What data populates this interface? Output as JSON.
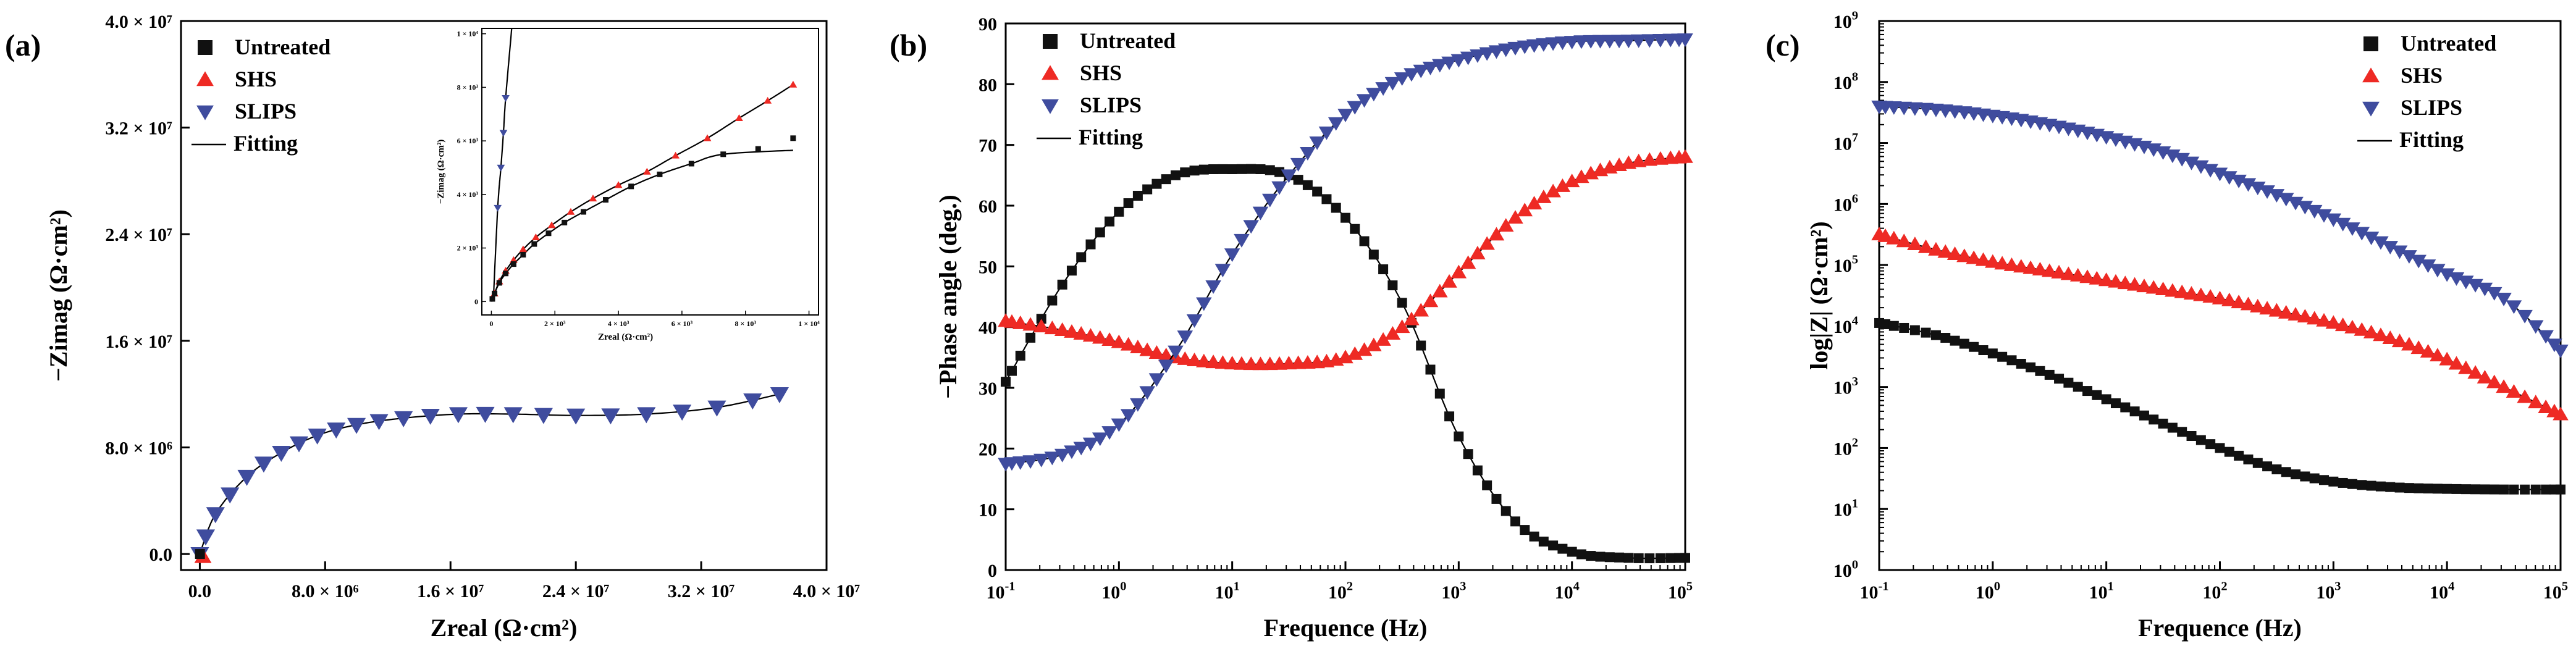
{
  "colors": {
    "untreated": "#111111",
    "shs": "#ee2a24",
    "slips": "#3f4c9e",
    "fit": "#000000",
    "axis": "#000000"
  },
  "legend": {
    "untreated": "Untreated",
    "shs": "SHS",
    "slips": "SLIPS",
    "fitting": "Fitting"
  },
  "chart_data": [
    {
      "type": "scatter",
      "panel": "(a)",
      "title": "",
      "xlabel": "Zreal (Ω·cm²)",
      "ylabel": "−Zimag (Ω·cm²)",
      "xlim": [
        -1200000,
        40000000
      ],
      "ylim": [
        -1200000,
        40000000
      ],
      "x_ticks": [
        0,
        8000000,
        16000000,
        24000000,
        32000000,
        40000000
      ],
      "x_tick_labels": [
        "0.0",
        "8.0 × 10⁶",
        "1.6 × 10⁷",
        "2.4 × 10⁷",
        "3.2 × 10⁷",
        "4.0 × 10⁷"
      ],
      "y_ticks": [
        0,
        8000000,
        16000000,
        24000000,
        32000000,
        40000000
      ],
      "y_tick_labels": [
        "0.0",
        "8.0 × 10⁶",
        "1.6 × 10⁷",
        "2.4 × 10⁷",
        "3.2 × 10⁷",
        "4.0 × 10⁷"
      ],
      "series": [
        {
          "name": "SLIPS",
          "x": [
            1000000,
            3000000,
            5200000,
            7500000,
            10000000,
            13000000,
            16500000,
            20000000,
            24000000,
            28500000,
            33000000,
            37000000
          ],
          "y": [
            3000000,
            5800000,
            7600000,
            8900000,
            9700000,
            10200000,
            10500000,
            10500000,
            10400000,
            10500000,
            11000000,
            12000000
          ]
        },
        {
          "name": "SHS",
          "x": [
            200000
          ],
          "y": [
            -200000
          ]
        },
        {
          "name": "Untreated",
          "x": [
            10000
          ],
          "y": [
            5000
          ]
        }
      ],
      "inset": {
        "xlabel": "Zreal (Ω·cm²)",
        "ylabel": "−Zimag (Ω·cm²)",
        "xlim": [
          -300,
          10300
        ],
        "ylim": [
          -500,
          10200
        ],
        "x_ticks": [
          0,
          2000,
          4000,
          6000,
          8000,
          10000
        ],
        "x_tick_labels": [
          "0",
          "2 × 10³",
          "4 × 10³",
          "6 × 10³",
          "8 × 10³",
          "1 × 10⁴"
        ],
        "y_ticks": [
          0,
          2000,
          4000,
          6000,
          8000,
          10000
        ],
        "y_tick_labels": [
          "0",
          "2 × 10³",
          "4 × 10³",
          "6 × 10³",
          "8 × 10³",
          "1 × 10⁴"
        ],
        "series": [
          {
            "name": "Untreated",
            "x": [
              30,
              100,
              250,
              450,
              700,
              1000,
              1350,
              1800,
              2300,
              2900,
              3600,
              4400,
              5300,
              6300,
              7300,
              8400,
              9500
            ],
            "y": [
              100,
              300,
              700,
              1050,
              1400,
              1750,
              2150,
              2550,
              2950,
              3350,
              3800,
              4300,
              4750,
              5150,
              5500,
              5700,
              6100
            ]
          },
          {
            "name": "SHS",
            "x": [
              100,
              250,
              450,
              700,
              1000,
              1400,
              1900,
              2500,
              3200,
              4000,
              4900,
              5800,
              6800,
              7800,
              8700,
              9500
            ],
            "y": [
              300,
              750,
              1150,
              1550,
              1950,
              2400,
              2850,
              3350,
              3850,
              4350,
              4850,
              5450,
              6100,
              6850,
              7500,
              8100
            ]
          },
          {
            "name": "SLIPS",
            "x": [
              200,
              300,
              380,
              450
            ],
            "y": [
              3500,
              5000,
              6300,
              7600
            ]
          }
        ]
      }
    },
    {
      "type": "scatter",
      "panel": "(b)",
      "title": "",
      "xlabel": "Frequence (Hz)",
      "ylabel": "−Phase angle (deg.)",
      "x_scale": "log",
      "xlim": [
        0.1,
        100000
      ],
      "ylim": [
        0,
        90
      ],
      "x_ticks": [
        0.1,
        1,
        10,
        100,
        1000,
        10000,
        100000
      ],
      "x_tick_labels": [
        "10",
        "10",
        "10",
        "10",
        "10",
        "10",
        "10"
      ],
      "x_tick_exponents": [
        "-1",
        "0",
        "1",
        "2",
        "3",
        "4",
        "5"
      ],
      "y_ticks": [
        0,
        10,
        20,
        30,
        40,
        50,
        60,
        70,
        80,
        90
      ],
      "y_tick_labels": [
        "0",
        "10",
        "20",
        "30",
        "40",
        "50",
        "60",
        "70",
        "80",
        "90"
      ],
      "series": [
        {
          "name": "Untreated",
          "x_log10": [
            -1,
            -0.5,
            0,
            0.5,
            1,
            1.5,
            2,
            2.5,
            3,
            3.5,
            4,
            4.5,
            5
          ],
          "y": [
            31,
            47,
            59,
            65,
            66,
            65,
            58,
            44,
            22,
            8,
            3,
            2,
            2
          ]
        },
        {
          "name": "SHS",
          "x_log10": [
            -1,
            -0.5,
            0,
            0.5,
            1,
            1.5,
            2,
            2.5,
            3,
            3.5,
            4,
            4.5,
            5
          ],
          "y": [
            41,
            39.5,
            37.5,
            35,
            34,
            34,
            35,
            40,
            49,
            58,
            64,
            67,
            68
          ]
        },
        {
          "name": "SLIPS",
          "x_log10": [
            -1,
            -0.5,
            0,
            0.5,
            1,
            1.5,
            2,
            2.5,
            3,
            3.5,
            4,
            4.5,
            5
          ],
          "y": [
            17.5,
            19,
            24,
            36,
            52,
            65,
            75,
            81,
            84,
            86,
            87,
            87.2,
            87.4
          ]
        }
      ]
    },
    {
      "type": "scatter",
      "panel": "(c)",
      "title": "",
      "xlabel": "Frequence (Hz)",
      "ylabel": "log|Z| (Ω·cm²)",
      "x_scale": "log",
      "y_scale": "log",
      "xlim": [
        0.1,
        100000
      ],
      "ylim": [
        1,
        1000000000
      ],
      "x_ticks": [
        0.1,
        1,
        10,
        100,
        1000,
        10000,
        100000
      ],
      "x_tick_labels": [
        "10",
        "10",
        "10",
        "10",
        "10",
        "10",
        "10"
      ],
      "x_tick_exponents": [
        "-1",
        "0",
        "1",
        "2",
        "3",
        "4",
        "5"
      ],
      "y_ticks": [
        1,
        10,
        100,
        1000,
        10000,
        100000,
        1000000,
        10000000,
        100000000,
        1000000000
      ],
      "y_tick_labels": [
        "10",
        "10",
        "10",
        "10",
        "10",
        "10",
        "10",
        "10",
        "10",
        "10"
      ],
      "y_tick_exponents": [
        "0",
        "1",
        "2",
        "3",
        "4",
        "5",
        "6",
        "7",
        "8",
        "9"
      ],
      "series": [
        {
          "name": "Untreated",
          "x_log10": [
            -1,
            -0.5,
            0,
            0.5,
            1,
            1.5,
            2,
            2.5,
            3,
            3.5,
            4,
            4.5,
            5
          ],
          "y_log10": [
            4.05,
            3.85,
            3.55,
            3.2,
            2.8,
            2.4,
            2.0,
            1.65,
            1.45,
            1.36,
            1.33,
            1.32,
            1.32
          ]
        },
        {
          "name": "SHS",
          "x_log10": [
            -1,
            -0.5,
            0,
            0.5,
            1,
            1.5,
            2,
            2.5,
            3,
            3.5,
            4,
            4.5,
            5
          ],
          "y_log10": [
            5.5,
            5.25,
            5.05,
            4.9,
            4.75,
            4.6,
            4.45,
            4.25,
            4.05,
            3.8,
            3.45,
            3.0,
            2.55
          ]
        },
        {
          "name": "SLIPS",
          "x_log10": [
            -1,
            -0.5,
            0,
            0.5,
            1,
            1.5,
            2,
            2.5,
            3,
            3.5,
            4,
            4.5,
            5
          ],
          "y_log10": [
            7.6,
            7.55,
            7.45,
            7.3,
            7.1,
            6.85,
            6.5,
            6.15,
            5.75,
            5.3,
            4.85,
            4.45,
            3.6
          ]
        }
      ]
    }
  ]
}
